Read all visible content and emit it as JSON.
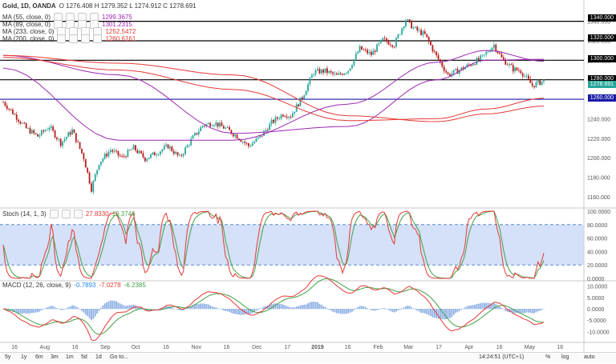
{
  "header": {
    "symbol": "Gold, 1D, OANDA",
    "ohlc": "O 1276.408  H 1279.352  L 1274.912  C 1278.691",
    "ma_labels": [
      {
        "name": "MA (55, close, 0)",
        "value": "1299.3675",
        "color": "#9c27b0"
      },
      {
        "name": "MA (89, close, 0)",
        "value": "1301.2315",
        "color": "#9c27b0"
      },
      {
        "name": "MA (233, close, 0)",
        "value": "1252.5472",
        "color": "#e53935"
      },
      {
        "name": "MA (200, close, 0)",
        "value": "1260.6161",
        "color": "#e53935"
      }
    ]
  },
  "levels": [
    "1340.000",
    "1320.000",
    "1300.000",
    "1280.000",
    "1260.000"
  ],
  "current_price": "1278.691",
  "stoch": {
    "label": "Stoch (14, 1, 3)",
    "k": "27.8330",
    "d": "19.3746"
  },
  "macd": {
    "label": "MACD (12, 26, close, 9)",
    "v1": "-0.7893",
    "v2": "-7.0278",
    "v3": "-6.2385"
  },
  "bottom_bar": {
    "ranges": [
      "5y",
      "1y",
      "6m",
      "3m",
      "1m",
      "5d",
      "1d",
      "Go to..."
    ],
    "time": "14:24:51 (UTC+1)",
    "right": [
      "%",
      "log",
      "auto"
    ]
  },
  "chart_data": {
    "type": "candlestick",
    "title": "Gold, 1D, OANDA",
    "x_ticks": [
      "16",
      "Aug",
      "16",
      "Sep",
      "Oct",
      "16",
      "Nov",
      "16",
      "Dec",
      "17",
      "2019",
      "16",
      "Feb",
      "Mar",
      "17",
      "Apr",
      "16",
      "May",
      "16"
    ],
    "y_ticks_price": [
      1340,
      1320,
      1300,
      1280,
      1260,
      1240,
      1220,
      1200,
      1180,
      1160
    ],
    "ylim_price": [
      1150,
      1352
    ],
    "horizontal_levels": [
      1340,
      1320,
      1300,
      1280,
      1260
    ],
    "close_path": [
      [
        0,
        1257
      ],
      [
        6,
        1244
      ],
      [
        12,
        1230
      ],
      [
        18,
        1222
      ],
      [
        24,
        1232
      ],
      [
        30,
        1215
      ],
      [
        36,
        1228
      ],
      [
        42,
        1200
      ],
      [
        46,
        1168
      ],
      [
        50,
        1195
      ],
      [
        56,
        1208
      ],
      [
        62,
        1200
      ],
      [
        68,
        1210
      ],
      [
        74,
        1199
      ],
      [
        80,
        1205
      ],
      [
        86,
        1212
      ],
      [
        92,
        1200
      ],
      [
        98,
        1218
      ],
      [
        104,
        1233
      ],
      [
        110,
        1236
      ],
      [
        116,
        1230
      ],
      [
        122,
        1222
      ],
      [
        128,
        1212
      ],
      [
        134,
        1221
      ],
      [
        140,
        1236
      ],
      [
        146,
        1245
      ],
      [
        150,
        1243
      ],
      [
        156,
        1262
      ],
      [
        162,
        1288
      ],
      [
        168,
        1289
      ],
      [
        174,
        1284
      ],
      [
        180,
        1290
      ],
      [
        186,
        1312
      ],
      [
        192,
        1306
      ],
      [
        198,
        1321
      ],
      [
        204,
        1316
      ],
      [
        210,
        1342
      ],
      [
        214,
        1333
      ],
      [
        220,
        1326
      ],
      [
        226,
        1304
      ],
      [
        232,
        1285
      ],
      [
        238,
        1290
      ],
      [
        244,
        1296
      ],
      [
        250,
        1303
      ],
      [
        256,
        1316
      ],
      [
        260,
        1302
      ],
      [
        266,
        1291
      ],
      [
        270,
        1289
      ],
      [
        276,
        1274
      ],
      [
        282,
        1279
      ]
    ],
    "series": [
      {
        "name": "MA (55, close, 0)",
        "color": "#9c27b0",
        "points": [
          [
            0,
            1292
          ],
          [
            60,
            1218
          ],
          [
            120,
            1218
          ],
          [
            180,
            1255
          ],
          [
            226,
            1298
          ],
          [
            252,
            1310
          ],
          [
            282,
            1299
          ]
        ]
      },
      {
        "name": "MA (89, close, 0)",
        "color": "#9c27b0",
        "points": [
          [
            0,
            1305
          ],
          [
            60,
            1285
          ],
          [
            120,
            1225
          ],
          [
            180,
            1232
          ],
          [
            226,
            1280
          ],
          [
            252,
            1300
          ],
          [
            282,
            1301
          ]
        ]
      },
      {
        "name": "MA (233, close, 0)",
        "color": "#e53935",
        "points": [
          [
            0,
            1305
          ],
          [
            60,
            1297
          ],
          [
            120,
            1285
          ],
          [
            180,
            1243
          ],
          [
            226,
            1237
          ],
          [
            252,
            1245
          ],
          [
            282,
            1253
          ]
        ]
      },
      {
        "name": "MA (200, close, 0)",
        "color": "#e53935",
        "points": [
          [
            0,
            1303
          ],
          [
            60,
            1290
          ],
          [
            120,
            1270
          ],
          [
            180,
            1238
          ],
          [
            226,
            1240
          ],
          [
            252,
            1250
          ],
          [
            282,
            1261
          ]
        ]
      }
    ],
    "stoch_ticks": [
      100,
      80,
      60,
      40,
      20,
      0
    ],
    "stoch_band": [
      20,
      80
    ],
    "macd_ticks": [
      10,
      5,
      0,
      -5,
      -10
    ]
  }
}
